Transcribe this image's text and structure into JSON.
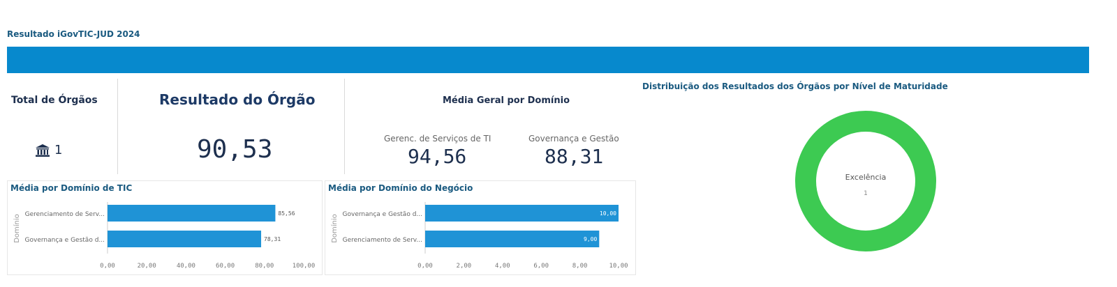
{
  "header": {
    "title": "Resultado iGovTIC-JUD 2024"
  },
  "kpis": {
    "total_orgaos_label": "Total de Órgãos",
    "total_orgaos_value": "1",
    "resultado_label": "Resultado do Órgão",
    "resultado_value": "90,53"
  },
  "media_geral": {
    "title": "Média Geral por Domínio",
    "items": [
      {
        "label": "Gerenc. de Serviços de TI",
        "value": "94,56"
      },
      {
        "label": "Governança e Gestão",
        "value": "88,31"
      }
    ]
  },
  "icons": {
    "building": "bank-building-icon"
  },
  "colors": {
    "header_bar": "#0789cd",
    "bar": "#1f93d6",
    "donut": "#3dca52"
  },
  "chart_data": [
    {
      "type": "bar",
      "orientation": "horizontal",
      "title": "Média por Domínio de TIC",
      "ylabel": "Domínio",
      "xlabel": "",
      "categories": [
        "Gerenciamento de Serv...",
        "Governança e Gestão d..."
      ],
      "values": [
        85.56,
        78.31
      ],
      "value_labels": [
        "85,56",
        "78,31"
      ],
      "xlim": [
        0,
        100
      ],
      "ticks": [
        0,
        20,
        40,
        60,
        80,
        100
      ],
      "tick_labels": [
        "0,00",
        "20,00",
        "40,00",
        "60,00",
        "80,00",
        "100,00"
      ],
      "grid": false
    },
    {
      "type": "bar",
      "orientation": "horizontal",
      "title": "Média por Domínio do Negócio",
      "ylabel": "Domínio",
      "xlabel": "",
      "categories": [
        "Governança e Gestão d...",
        "Gerenciamento de Serv..."
      ],
      "values": [
        10.0,
        9.0
      ],
      "value_labels": [
        "10,00",
        "9,00"
      ],
      "xlim": [
        0,
        10
      ],
      "ticks": [
        0,
        2,
        4,
        6,
        8,
        10
      ],
      "tick_labels": [
        "0,00",
        "2,00",
        "4,00",
        "6,00",
        "8,00",
        "10,00"
      ],
      "grid": false
    },
    {
      "type": "pie",
      "donut": true,
      "title": "Distribuição dos Resultados dos Órgãos por Nível de Maturidade",
      "categories": [
        "Excelência"
      ],
      "values": [
        1
      ],
      "value_labels": [
        "1"
      ]
    }
  ]
}
